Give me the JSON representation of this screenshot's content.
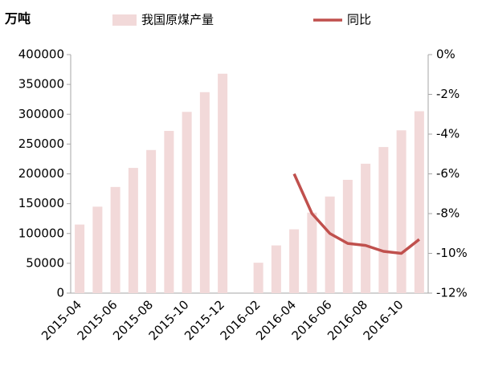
{
  "chart_data": {
    "type": "bar_line",
    "unit_label": "万吨",
    "categories": [
      "2015-04",
      null,
      "2015-06",
      null,
      "2015-08",
      null,
      "2015-10",
      null,
      "2015-12",
      null,
      "2016-02",
      null,
      "2016-04",
      null,
      "2016-06",
      null,
      "2016-08",
      null,
      "2016-10",
      null
    ],
    "series": [
      {
        "name": "我国原煤产量",
        "type": "bar",
        "color": "#f2d9d9",
        "axis": "y",
        "values": [
          115000,
          145000,
          178000,
          210000,
          240000,
          272000,
          304000,
          337000,
          368000,
          null,
          51000,
          80000,
          107000,
          135000,
          162000,
          190000,
          217000,
          245000,
          273000,
          305000
        ]
      },
      {
        "name": "同比",
        "type": "line",
        "color": "#c0504d",
        "axis": "y2",
        "values": [
          null,
          null,
          null,
          null,
          null,
          null,
          null,
          null,
          null,
          null,
          null,
          null,
          -6.0,
          -8.0,
          -9.0,
          -9.5,
          -9.6,
          -9.9,
          -10.0,
          -9.3
        ]
      }
    ],
    "ylim": [
      0,
      400000
    ],
    "yticks": [
      0,
      50000,
      100000,
      150000,
      200000,
      250000,
      300000,
      350000,
      400000
    ],
    "y2lim": [
      -12,
      0
    ],
    "y2ticks": [
      {
        "value": -12,
        "label": "-12%"
      },
      {
        "value": -10,
        "label": "-10%"
      },
      {
        "value": -8,
        "label": "-8%"
      },
      {
        "value": -6,
        "label": "-6%"
      },
      {
        "value": -4,
        "label": "-4%"
      },
      {
        "value": -2,
        "label": "-2%"
      },
      {
        "value": 0,
        "label": "0%"
      }
    ]
  }
}
